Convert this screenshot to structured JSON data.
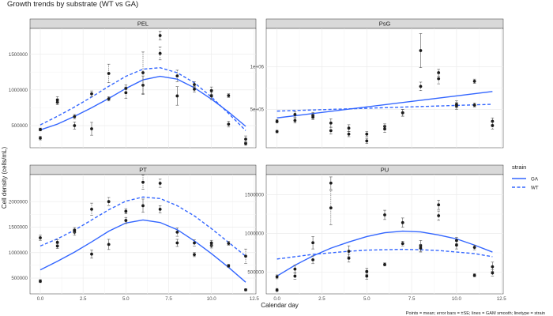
{
  "chart_data": {
    "type": "scatter",
    "title": "Growth trends by substrate (WT vs GA)",
    "xlabel": "Calendar day",
    "ylabel": "Cell density (cells/mL)",
    "caption": "Points = mean; error bars = ±SE; lines = GAM smooth; linetype = strain",
    "legend": {
      "title": "strain",
      "position": "right",
      "entries": [
        {
          "name": "GA",
          "linetype": "solid"
        },
        {
          "name": "WT",
          "linetype": "dashed"
        }
      ]
    },
    "colors": {
      "line": "#3366ff",
      "point": "#1a1a1a",
      "strip_bg": "#d9d9d9",
      "grid": "#ebebeb"
    },
    "grid": true,
    "xlim": [
      -0.6,
      12.6
    ],
    "x_ticks": [
      0,
      2.5,
      5,
      7.5,
      10,
      12.5
    ],
    "x_tick_labels": [
      "0.0",
      "2.5",
      "5.0",
      "7.5",
      "10.0",
      "12.5"
    ],
    "panels": [
      {
        "name": "PEL",
        "ylim": [
          190000,
          1860000
        ],
        "y_ticks": [
          500000,
          1000000,
          1500000
        ],
        "y_tick_labels": [
          "500000",
          "1000000",
          "1500000"
        ],
        "series": [
          {
            "name": "GA",
            "linetype": "solid",
            "x": [
              0,
              1,
              2,
              3,
              4,
              5,
              6,
              7,
              8,
              9,
              10,
              11,
              12
            ],
            "y": [
              445000,
              825000,
              500000,
              455000,
              875000,
              1020000,
              1065000,
              1760000,
              915000,
              1010000,
              915000,
              920000,
              250000
            ],
            "se": [
              20000,
              30000,
              50000,
              90000,
              30000,
              50000,
              130000,
              60000,
              130000,
              40000,
              50000,
              25000,
              25000
            ]
          },
          {
            "name": "WT",
            "linetype": "dashed",
            "x": [
              0,
              1,
              2,
              3,
              4,
              5,
              6,
              7,
              8,
              9,
              10,
              11,
              12
            ],
            "y": [
              325000,
              860000,
              625000,
              945000,
              1230000,
              960000,
              1240000,
              1510000,
              1195000,
              1075000,
              990000,
              520000,
              310000
            ],
            "se": [
              25000,
              45000,
              30000,
              40000,
              130000,
              80000,
              290000,
              90000,
              80000,
              40000,
              50000,
              40000,
              45000
            ]
          }
        ],
        "smooth": [
          {
            "name": "GA",
            "x": [
              0,
              1,
              2,
              3,
              4,
              5,
              6,
              7,
              8,
              9,
              10,
              11,
              12
            ],
            "y": [
              440000,
              520000,
              630000,
              750000,
              880000,
              1020000,
              1140000,
              1190000,
              1150000,
              1030000,
              870000,
              690000,
              490000
            ]
          },
          {
            "name": "WT",
            "x": [
              0,
              1,
              2,
              3,
              4,
              5,
              6,
              7,
              8,
              9,
              10,
              11,
              12
            ],
            "y": [
              510000,
              630000,
              760000,
              900000,
              1050000,
              1190000,
              1290000,
              1310000,
              1240000,
              1100000,
              900000,
              670000,
              430000
            ]
          }
        ]
      },
      {
        "name": "PsG",
        "ylim": [
          50000,
          1450000
        ],
        "y_ticks": [
          500000,
          1000000
        ],
        "y_tick_labels": [
          "5e+05",
          "1e+06"
        ],
        "series": [
          {
            "name": "GA",
            "linetype": "solid",
            "x": [
              0,
              1,
              2,
              3,
              4,
              5,
              6,
              7,
              8,
              9,
              10,
              11,
              12
            ],
            "y": [
              240000,
              440000,
              430000,
              340000,
              280000,
              130000,
              300000,
              460000,
              1190000,
              930000,
              540000,
              830000,
              360000
            ],
            "se": [
              15000,
              30000,
              35000,
              50000,
              40000,
              30000,
              30000,
              40000,
              200000,
              40000,
              40000,
              25000,
              40000
            ]
          },
          {
            "name": "WT",
            "linetype": "dashed",
            "x": [
              0,
              1,
              2,
              3,
              4,
              5,
              6,
              7,
              8,
              9,
              10,
              11,
              12
            ],
            "y": [
              360000,
              370000,
              410000,
              250000,
              210000,
              210000,
              270000,
              460000,
              770000,
              860000,
              560000,
              550000,
              310000
            ],
            "se": [
              20000,
              30000,
              30000,
              40000,
              30000,
              30000,
              40000,
              40000,
              50000,
              60000,
              40000,
              25000,
              40000
            ]
          }
        ],
        "smooth": [
          {
            "name": "GA",
            "x": [
              0,
              12
            ],
            "y": [
              400000,
              710000
            ]
          },
          {
            "name": "WT",
            "x": [
              0,
              12
            ],
            "y": [
              480000,
              560000
            ]
          }
        ]
      },
      {
        "name": "PT",
        "ylim": [
          190000,
          2530000
        ],
        "y_ticks": [
          500000,
          1000000,
          1500000,
          2000000
        ],
        "y_tick_labels": [
          "500000",
          "1000000",
          "1500000",
          "2000000"
        ],
        "series": [
          {
            "name": "GA",
            "linetype": "solid",
            "x": [
              0,
              1,
              2,
              3,
              4,
              5,
              6,
              7,
              8,
              9,
              10,
              11,
              12
            ],
            "y": [
              440000,
              1130000,
              1400000,
              970000,
              1160000,
              1630000,
              1920000,
              1850000,
              1190000,
              960000,
              1140000,
              740000,
              270000
            ],
            "se": [
              30000,
              50000,
              60000,
              80000,
              100000,
              60000,
              130000,
              70000,
              70000,
              40000,
              50000,
              30000,
              20000
            ]
          },
          {
            "name": "WT",
            "linetype": "dashed",
            "x": [
              0,
              1,
              2,
              3,
              4,
              5,
              6,
              7,
              8,
              9,
              10,
              11,
              12
            ],
            "y": [
              1290000,
              1200000,
              1440000,
              1850000,
              2000000,
              1810000,
              2380000,
              2360000,
              1400000,
              1190000,
              1190000,
              1180000,
              930000
            ],
            "se": [
              50000,
              50000,
              50000,
              120000,
              80000,
              50000,
              140000,
              80000,
              80000,
              60000,
              50000,
              40000,
              140000
            ]
          }
        ],
        "smooth": [
          {
            "name": "GA",
            "x": [
              0,
              1,
              2,
              3,
              4,
              5,
              6,
              7,
              8,
              9,
              10,
              11,
              12
            ],
            "y": [
              660000,
              830000,
              1010000,
              1210000,
              1420000,
              1580000,
              1640000,
              1590000,
              1450000,
              1230000,
              980000,
              710000,
              420000
            ]
          },
          {
            "name": "WT",
            "x": [
              0,
              1,
              2,
              3,
              4,
              5,
              6,
              7,
              8,
              9,
              10,
              11,
              12
            ],
            "y": [
              1130000,
              1270000,
              1440000,
              1640000,
              1840000,
              2010000,
              2090000,
              2060000,
              1920000,
              1720000,
              1470000,
              1200000,
              930000
            ]
          }
        ]
      },
      {
        "name": "PU",
        "ylim": [
          220000,
          1760000
        ],
        "y_ticks": [
          500000,
          1000000,
          1500000
        ],
        "y_tick_labels": [
          "500000",
          "1000000",
          "1500000"
        ],
        "series": [
          {
            "name": "GA",
            "linetype": "solid",
            "x": [
              0,
              1,
              2,
              3,
              4,
              5,
              6,
              7,
              8,
              9,
              10,
              11,
              12
            ],
            "y": [
              270000,
              540000,
              880000,
              1650000,
              770000,
              450000,
              1240000,
              1140000,
              840000,
              1370000,
              850000,
              460000,
              570000
            ],
            "se": [
              20000,
              50000,
              80000,
              80000,
              70000,
              40000,
              60000,
              60000,
              70000,
              60000,
              50000,
              20000,
              60000
            ]
          },
          {
            "name": "WT",
            "linetype": "dashed",
            "x": [
              0,
              1,
              2,
              3,
              4,
              5,
              6,
              7,
              8,
              9,
              10,
              11,
              12
            ],
            "y": [
              440000,
              450000,
              660000,
              1330000,
              680000,
              510000,
              600000,
              870000,
              810000,
              1230000,
              910000,
              820000,
              490000
            ],
            "se": [
              25000,
              40000,
              50000,
              220000,
              50000,
              40000,
              20000,
              30000,
              50000,
              60000,
              40000,
              30000,
              40000
            ]
          }
        ],
        "smooth": [
          {
            "name": "GA",
            "x": [
              0,
              1,
              2,
              3,
              4,
              5,
              6,
              7,
              8,
              9,
              10,
              11,
              12
            ],
            "y": [
              450000,
              590000,
              710000,
              810000,
              890000,
              960000,
              1010000,
              1030000,
              1020000,
              980000,
              930000,
              850000,
              760000
            ]
          },
          {
            "name": "WT",
            "x": [
              0,
              1,
              2,
              3,
              4,
              5,
              6,
              7,
              8,
              9,
              10,
              11,
              12
            ],
            "y": [
              670000,
              700000,
              730000,
              750000,
              770000,
              785000,
              790000,
              795000,
              790000,
              780000,
              760000,
              740000,
              700000
            ]
          }
        ]
      }
    ]
  }
}
